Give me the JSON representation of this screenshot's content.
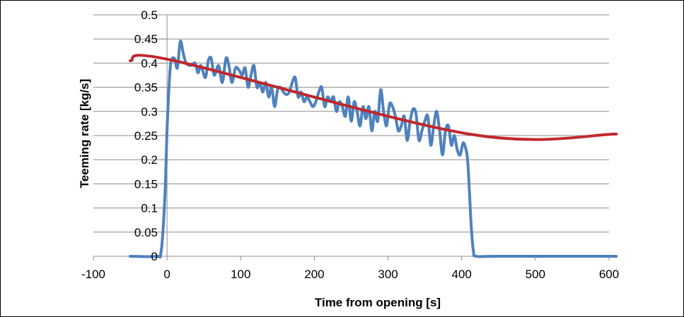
{
  "chart_data": {
    "type": "line",
    "title": "",
    "xlabel": "Time from opening [s]",
    "ylabel": "Teeming rate [kg/s]",
    "xlim": [
      -100,
      600
    ],
    "ylim": [
      0,
      0.5
    ],
    "x_ticks": [
      "-100",
      "0",
      "100",
      "200",
      "300",
      "400",
      "500",
      "600"
    ],
    "y_ticks": [
      "0",
      "0.05",
      "0.1",
      "0.15",
      "0.2",
      "0.25",
      "0.3",
      "0.35",
      "0.4",
      "0.45",
      "0.5"
    ],
    "grid": "horizontal",
    "legend": "none",
    "series": [
      {
        "color": "#4f81bd",
        "points": [
          [
            -50,
            0
          ],
          [
            -15,
            0
          ],
          [
            -8,
            0.01
          ],
          [
            -3,
            0.12
          ],
          [
            0,
            0.26
          ],
          [
            2,
            0.33
          ],
          [
            5,
            0.4
          ],
          [
            10,
            0.41
          ],
          [
            14,
            0.39
          ],
          [
            18,
            0.445
          ],
          [
            22,
            0.42
          ],
          [
            26,
            0.4
          ],
          [
            32,
            0.395
          ],
          [
            38,
            0.4
          ],
          [
            42,
            0.38
          ],
          [
            46,
            0.395
          ],
          [
            52,
            0.37
          ],
          [
            56,
            0.405
          ],
          [
            60,
            0.41
          ],
          [
            64,
            0.375
          ],
          [
            70,
            0.395
          ],
          [
            75,
            0.36
          ],
          [
            80,
            0.41
          ],
          [
            84,
            0.395
          ],
          [
            88,
            0.36
          ],
          [
            93,
            0.39
          ],
          [
            98,
            0.385
          ],
          [
            102,
            0.375
          ],
          [
            106,
            0.39
          ],
          [
            110,
            0.35
          ],
          [
            114,
            0.375
          ],
          [
            118,
            0.395
          ],
          [
            122,
            0.35
          ],
          [
            126,
            0.36
          ],
          [
            130,
            0.34
          ],
          [
            134,
            0.36
          ],
          [
            138,
            0.33
          ],
          [
            142,
            0.35
          ],
          [
            146,
            0.31
          ],
          [
            150,
            0.345
          ],
          [
            154,
            0.35
          ],
          [
            158,
            0.34
          ],
          [
            162,
            0.335
          ],
          [
            166,
            0.34
          ],
          [
            170,
            0.36
          ],
          [
            174,
            0.37
          ],
          [
            178,
            0.33
          ],
          [
            182,
            0.34
          ],
          [
            186,
            0.32
          ],
          [
            190,
            0.33
          ],
          [
            194,
            0.32
          ],
          [
            198,
            0.31
          ],
          [
            202,
            0.32
          ],
          [
            206,
            0.34
          ],
          [
            210,
            0.35
          ],
          [
            214,
            0.31
          ],
          [
            218,
            0.33
          ],
          [
            222,
            0.32
          ],
          [
            226,
            0.33
          ],
          [
            230,
            0.3
          ],
          [
            234,
            0.32
          ],
          [
            238,
            0.31
          ],
          [
            242,
            0.29
          ],
          [
            246,
            0.33
          ],
          [
            250,
            0.28
          ],
          [
            254,
            0.32
          ],
          [
            258,
            0.3
          ],
          [
            262,
            0.27
          ],
          [
            266,
            0.31
          ],
          [
            270,
            0.285
          ],
          [
            274,
            0.31
          ],
          [
            278,
            0.26
          ],
          [
            282,
            0.3
          ],
          [
            286,
            0.28
          ],
          [
            290,
            0.345
          ],
          [
            294,
            0.3
          ],
          [
            298,
            0.27
          ],
          [
            302,
            0.315
          ],
          [
            306,
            0.31
          ],
          [
            310,
            0.29
          ],
          [
            314,
            0.26
          ],
          [
            318,
            0.27
          ],
          [
            322,
            0.29
          ],
          [
            326,
            0.24
          ],
          [
            330,
            0.28
          ],
          [
            334,
            0.305
          ],
          [
            338,
            0.295
          ],
          [
            342,
            0.24
          ],
          [
            346,
            0.26
          ],
          [
            350,
            0.28
          ],
          [
            354,
            0.29
          ],
          [
            358,
            0.23
          ],
          [
            362,
            0.27
          ],
          [
            366,
            0.3
          ],
          [
            370,
            0.26
          ],
          [
            374,
            0.21
          ],
          [
            378,
            0.26
          ],
          [
            382,
            0.27
          ],
          [
            386,
            0.23
          ],
          [
            390,
            0.25
          ],
          [
            394,
            0.22
          ],
          [
            398,
            0.21
          ],
          [
            402,
            0.235
          ],
          [
            406,
            0.22
          ],
          [
            408,
            0.2
          ],
          [
            410,
            0.15
          ],
          [
            413,
            0.06
          ],
          [
            416,
            0.01
          ],
          [
            420,
            0
          ],
          [
            450,
            0
          ],
          [
            610,
            0
          ]
        ]
      },
      {
        "color": "#c0272d",
        "points": [
          [
            -50,
            0.405
          ],
          [
            10,
            0.405
          ],
          [
            410,
            0.253
          ],
          [
            610,
            0.253
          ]
        ]
      }
    ]
  }
}
